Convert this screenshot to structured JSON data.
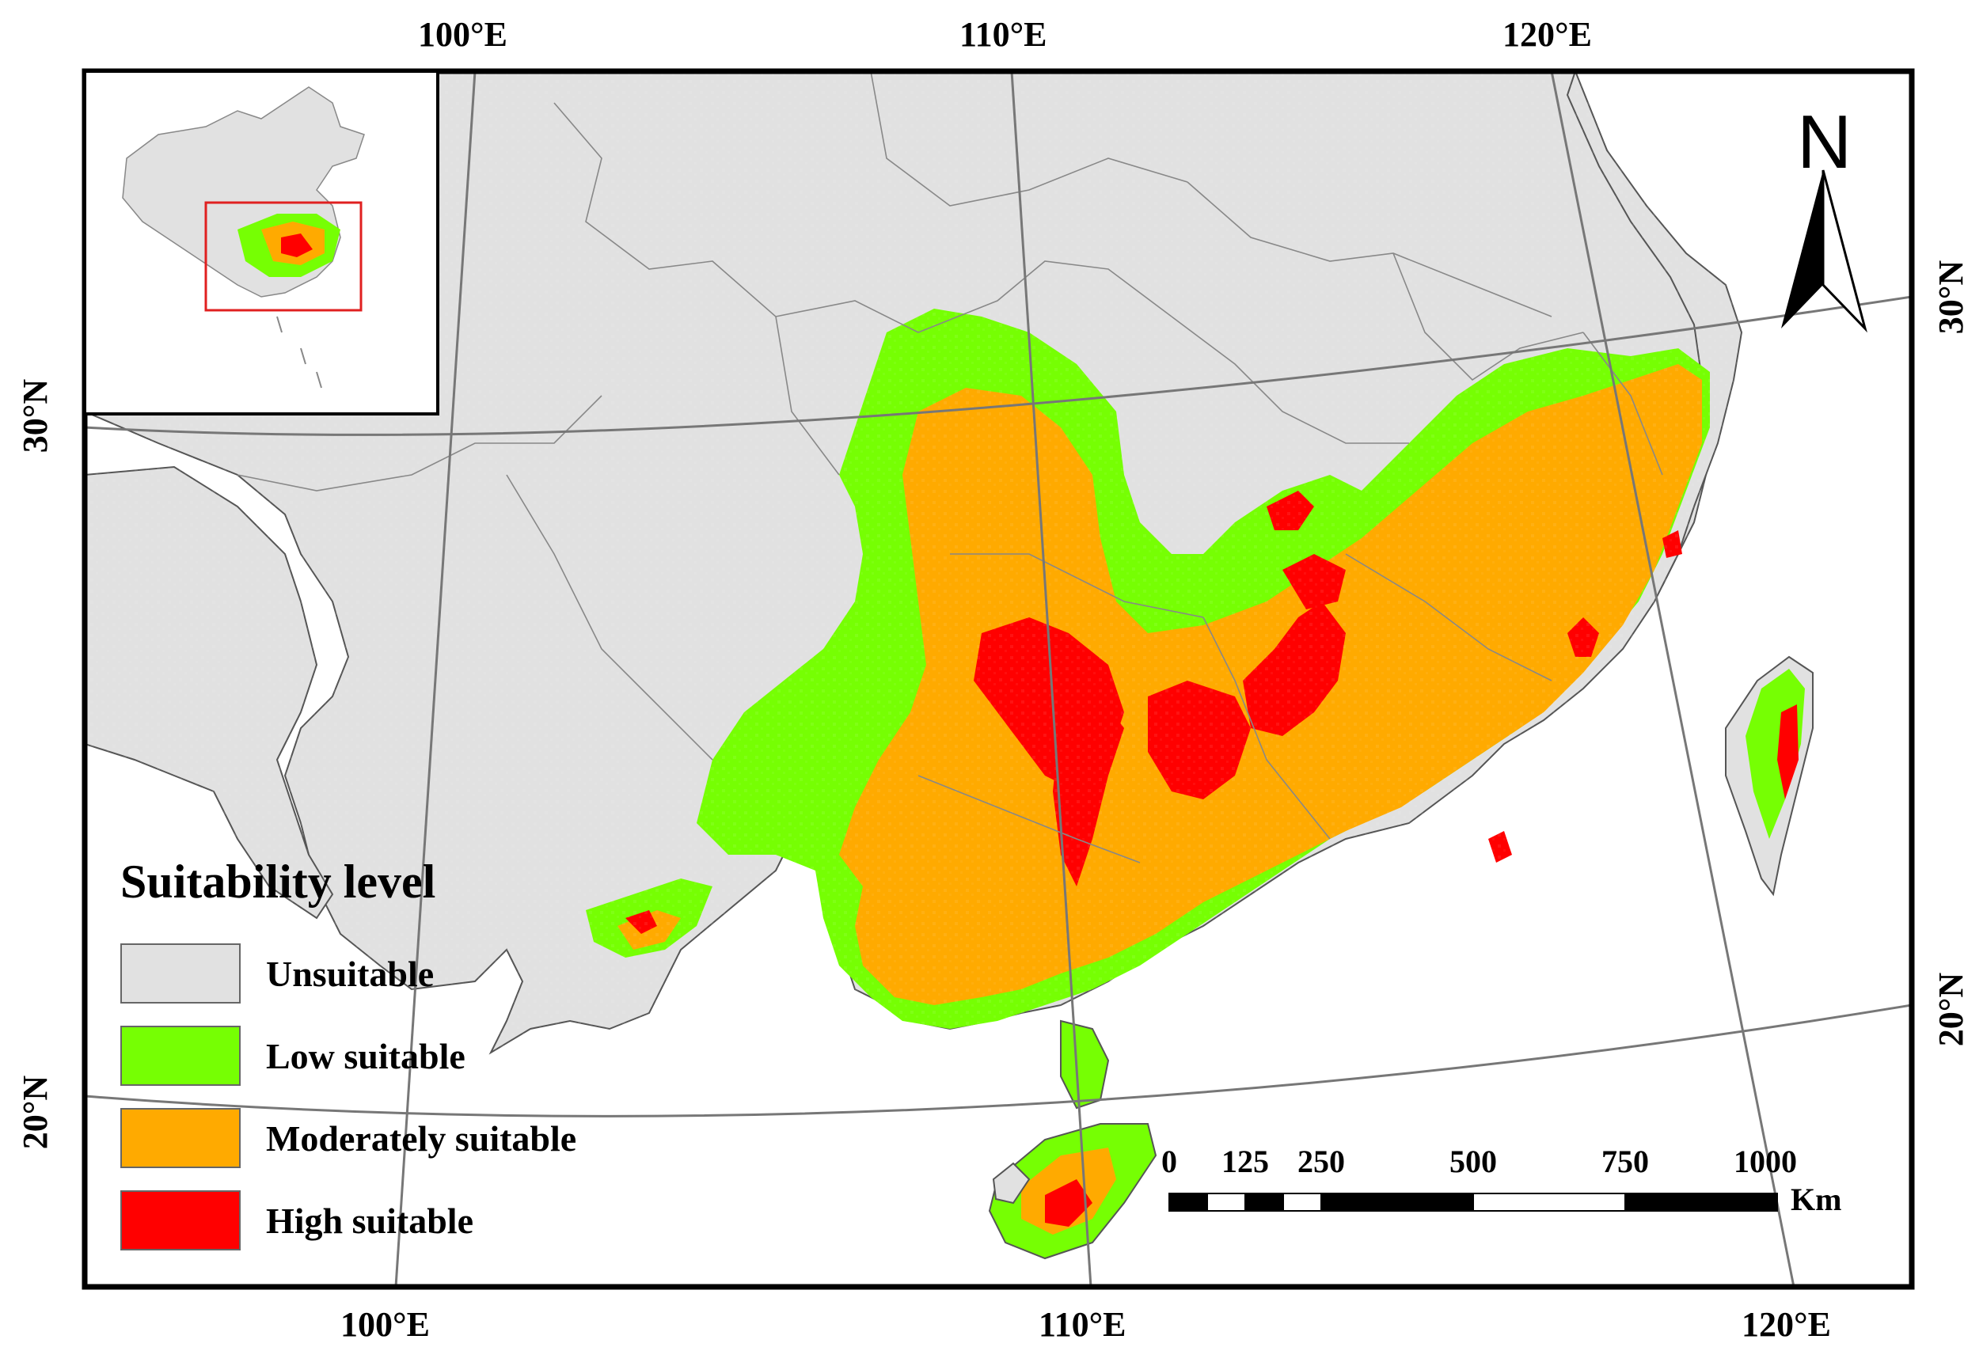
{
  "graticule_labels": {
    "top": [
      "100°E",
      "110°E",
      "120°E"
    ],
    "bottom": [
      "100°E",
      "110°E",
      "120°E"
    ],
    "left": [
      "30°N",
      "20°N"
    ],
    "right": [
      "30°N",
      "20°N"
    ]
  },
  "north_arrow": {
    "label": "N",
    "icon": "north-arrow-icon"
  },
  "legend": {
    "title": "Suitability level",
    "items": [
      {
        "label": "Unsuitable",
        "color": "#e1e1e1"
      },
      {
        "label": "Low suitable",
        "color": "#76ff03"
      },
      {
        "label": "Moderately suitable",
        "color": "#ffaa00"
      },
      {
        "label": "High suitable",
        "color": "#ff0000"
      }
    ]
  },
  "scale_bar": {
    "ticks": [
      "0",
      "125",
      "250",
      "500",
      "750",
      "1000"
    ],
    "unit": "Km"
  },
  "inset": {
    "extent_box_color": "#e02020"
  }
}
